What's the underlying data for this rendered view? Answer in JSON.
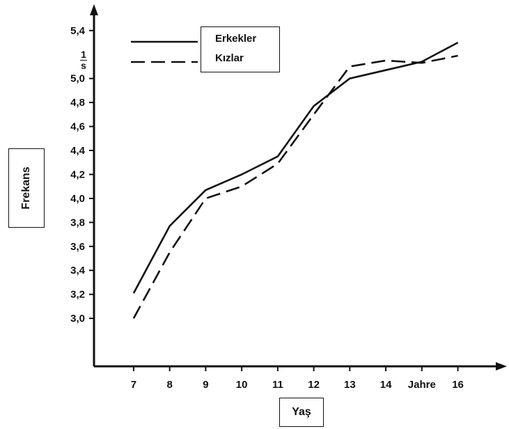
{
  "chart_data": {
    "type": "line",
    "xlabel": "Yaş",
    "ylabel": "Frekans",
    "y_unit": {
      "numerator": "1",
      "denominator": "s"
    },
    "x_ticks": [
      "7",
      "8",
      "9",
      "10",
      "11",
      "12",
      "13",
      "14",
      "Jahre",
      "16"
    ],
    "x_tick_values": [
      7,
      8,
      9,
      10,
      11,
      12,
      13,
      14,
      15,
      16
    ],
    "y_ticks": [
      "3,0",
      "3,2",
      "3,4",
      "3,6",
      "3,8",
      "4,0",
      "4,2",
      "4,4",
      "4,6",
      "4,8",
      "5,0",
      "5,4"
    ],
    "y_tick_values": [
      3.0,
      3.2,
      3.4,
      3.6,
      3.8,
      4.0,
      4.2,
      4.4,
      4.6,
      4.8,
      5.0,
      5.4
    ],
    "xlim": [
      5.9,
      17.4
    ],
    "ylim": [
      2.6,
      5.55
    ],
    "grid": false,
    "legend_position": "top-left",
    "series": [
      {
        "name": "Erkekler",
        "style": "solid",
        "x": [
          7,
          8,
          9,
          10,
          11,
          12,
          13,
          14,
          15,
          16
        ],
        "y": [
          3.21,
          3.77,
          4.07,
          4.2,
          4.35,
          4.77,
          5.0,
          5.07,
          5.14,
          5.3
        ]
      },
      {
        "name": "Kızlar",
        "style": "dashed",
        "x": [
          7,
          8,
          9,
          10,
          11,
          12,
          13,
          14,
          15,
          16
        ],
        "y": [
          3.0,
          3.55,
          4.0,
          4.1,
          4.29,
          4.7,
          5.1,
          5.15,
          5.13,
          5.19
        ]
      }
    ]
  }
}
